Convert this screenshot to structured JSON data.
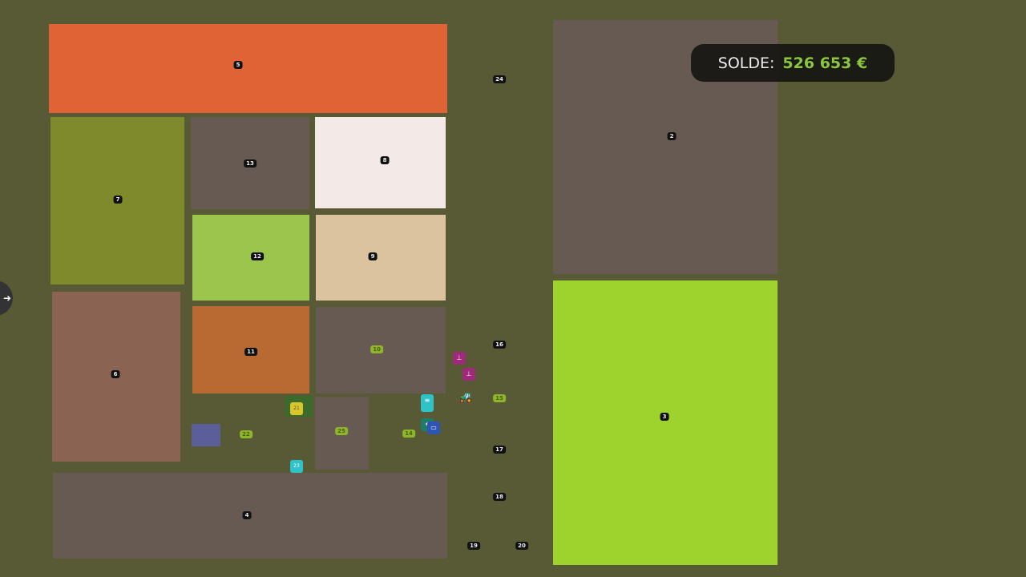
{
  "balance": {
    "label": "SOLDE:",
    "value": "526 653 €",
    "value_color": "#8cc63f"
  },
  "fields": [
    {
      "id": "5",
      "color": "#e06335"
    },
    {
      "id": "7",
      "color": "#7f8a2d"
    },
    {
      "id": "13",
      "color": "#665a53"
    },
    {
      "id": "8",
      "color": "#f3eae8"
    },
    {
      "id": "12",
      "color": "#9cc54e"
    },
    {
      "id": "9",
      "color": "#dbc3a0"
    },
    {
      "id": "6",
      "color": "#8b6352"
    },
    {
      "id": "11",
      "color": "#b96a33"
    },
    {
      "id": "10",
      "color": "#665a53"
    },
    {
      "id": "25",
      "color": "#665a53"
    },
    {
      "id": "4",
      "color": "#665a53"
    },
    {
      "id": "2",
      "color": "#665a53"
    },
    {
      "id": "3",
      "color": "#9ed22c"
    },
    {
      "id": "22",
      "color": "#5b5f99"
    }
  ],
  "markers": [
    "24",
    "16",
    "15",
    "14",
    "17",
    "18",
    "19",
    "20",
    "21",
    "23"
  ],
  "icons": {
    "side_tab": "arrow-right-icon"
  }
}
